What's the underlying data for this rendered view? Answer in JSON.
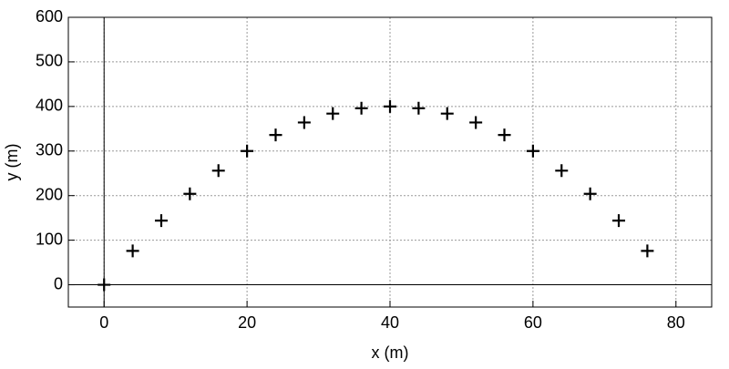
{
  "chart_data": {
    "type": "scatter",
    "xlabel": "x (m)",
    "ylabel": "y (m)",
    "x": [
      0,
      4,
      8,
      12,
      16,
      20,
      24,
      28,
      32,
      36,
      40,
      44,
      48,
      52,
      56,
      60,
      64,
      68,
      72,
      76
    ],
    "series": [
      {
        "values": [
          0,
          76,
          144,
          204,
          256,
          300,
          336,
          364,
          384,
          396,
          400,
          396,
          384,
          364,
          336,
          300,
          256,
          204,
          144,
          76
        ],
        "color": "#000000"
      }
    ],
    "xlim": [
      -5,
      85
    ],
    "ylim": [
      -50,
      600
    ],
    "xticks": [
      0,
      20,
      40,
      60,
      80
    ],
    "yticks": [
      0,
      100,
      200,
      300,
      400,
      500,
      600
    ],
    "grid": true
  }
}
